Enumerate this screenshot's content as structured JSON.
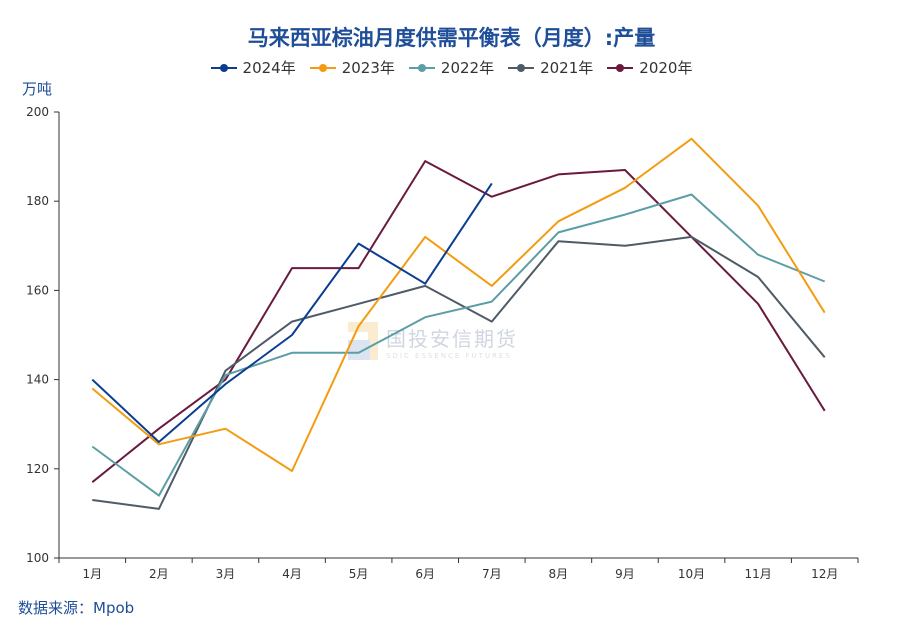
{
  "chart_data": {
    "type": "line",
    "title": "马来西亚棕油月度供需平衡表（月度）:产量",
    "ylabel": "万吨",
    "categories": [
      "1月",
      "2月",
      "3月",
      "4月",
      "5月",
      "6月",
      "7月",
      "8月",
      "9月",
      "10月",
      "11月",
      "12月"
    ],
    "ylim": [
      100,
      200
    ],
    "yticks": [
      100,
      120,
      140,
      160,
      180,
      200
    ],
    "legend_position": "top",
    "grid": false,
    "series": [
      {
        "name": "2024年",
        "color": "#0b3d91",
        "values": [
          140,
          126,
          139,
          150,
          170.5,
          161.5,
          184,
          null,
          null,
          null,
          null,
          null
        ]
      },
      {
        "name": "2023年",
        "color": "#f39c12",
        "values": [
          138,
          125.5,
          129,
          119.5,
          152,
          172,
          161,
          175.5,
          183,
          194,
          179,
          155
        ]
      },
      {
        "name": "2022年",
        "color": "#5b9ea6",
        "values": [
          125,
          114,
          141,
          146,
          146,
          154,
          157.5,
          173,
          177,
          181.5,
          168,
          162
        ]
      },
      {
        "name": "2021年",
        "color": "#4f5b66",
        "values": [
          113,
          111,
          142,
          153,
          157,
          161,
          153,
          171,
          170,
          172,
          163,
          145
        ]
      },
      {
        "name": "2020年",
        "color": "#6b1a3f",
        "values": [
          117,
          129,
          140,
          165,
          165,
          189,
          181,
          186,
          187,
          172,
          157,
          133
        ]
      }
    ]
  },
  "source_label": "数据来源：Mpob",
  "watermark": {
    "cn": "国投安信期货",
    "en": "SDIC ESSENCE FUTURES"
  }
}
